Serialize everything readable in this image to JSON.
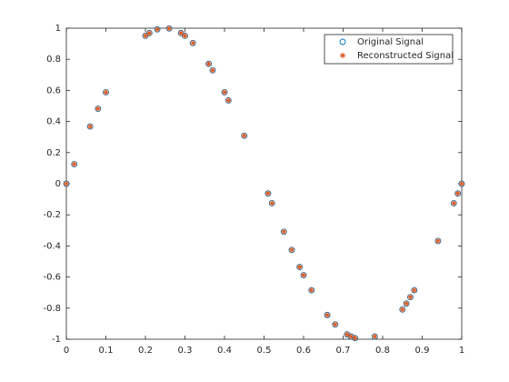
{
  "chart_data": {
    "type": "scatter",
    "series": [
      {
        "name": "Original Signal",
        "color": "#0072bd",
        "marker": "circle",
        "x": [
          0,
          0.02,
          0.06,
          0.08,
          0.1,
          0.2,
          0.21,
          0.23,
          0.26,
          0.29,
          0.3,
          0.32,
          0.36,
          0.37,
          0.4,
          0.41,
          0.45,
          0.51,
          0.52,
          0.55,
          0.57,
          0.59,
          0.6,
          0.62,
          0.66,
          0.68,
          0.71,
          0.72,
          0.73,
          0.78,
          0.85,
          0.86,
          0.87,
          0.88,
          0.94,
          0.98,
          0.99,
          1
        ],
        "values": [
          0,
          0.1253,
          0.3681,
          0.4818,
          0.5878,
          0.9511,
          0.9686,
          0.9921,
          0.998,
          0.9686,
          0.9511,
          0.9048,
          0.7705,
          0.729,
          0.5878,
          0.5358,
          0.309,
          -0.0628,
          -0.1253,
          -0.309,
          -0.4258,
          -0.5358,
          -0.5878,
          -0.6845,
          -0.8443,
          -0.9048,
          -0.9686,
          -0.9823,
          -0.9921,
          -0.9823,
          -0.809,
          -0.7705,
          -0.729,
          -0.6845,
          -0.3681,
          -0.1253,
          -0.0628,
          0
        ]
      },
      {
        "name": "Reconstructed Signal",
        "color": "#d95319",
        "marker": "asterisk",
        "x": [
          0,
          0.02,
          0.06,
          0.08,
          0.1,
          0.2,
          0.21,
          0.23,
          0.26,
          0.29,
          0.3,
          0.32,
          0.36,
          0.37,
          0.4,
          0.41,
          0.45,
          0.51,
          0.52,
          0.55,
          0.57,
          0.59,
          0.6,
          0.62,
          0.66,
          0.68,
          0.71,
          0.72,
          0.73,
          0.78,
          0.85,
          0.86,
          0.87,
          0.88,
          0.94,
          0.98,
          0.99,
          1
        ],
        "values": [
          0,
          0.1253,
          0.3681,
          0.4818,
          0.5878,
          0.9511,
          0.9686,
          0.9921,
          0.998,
          0.9686,
          0.9511,
          0.9048,
          0.7705,
          0.729,
          0.5878,
          0.5358,
          0.309,
          -0.0628,
          -0.1253,
          -0.309,
          -0.4258,
          -0.5358,
          -0.5878,
          -0.6845,
          -0.8443,
          -0.9048,
          -0.9686,
          -0.9823,
          -0.9921,
          -0.9823,
          -0.809,
          -0.7705,
          -0.729,
          -0.6845,
          -0.3681,
          -0.1253,
          -0.0628,
          0
        ]
      }
    ],
    "xlim": [
      0,
      1
    ],
    "xticks": [
      0,
      0.1,
      0.2,
      0.3,
      0.4,
      0.5,
      0.6,
      0.7,
      0.8,
      0.9,
      1
    ],
    "ylim": [
      -1,
      1
    ],
    "yticks": [
      -1,
      -0.8,
      -0.6,
      -0.4,
      -0.2,
      0,
      0.2,
      0.4,
      0.6,
      0.8,
      1
    ],
    "grid": false,
    "legend": "northeast"
  }
}
